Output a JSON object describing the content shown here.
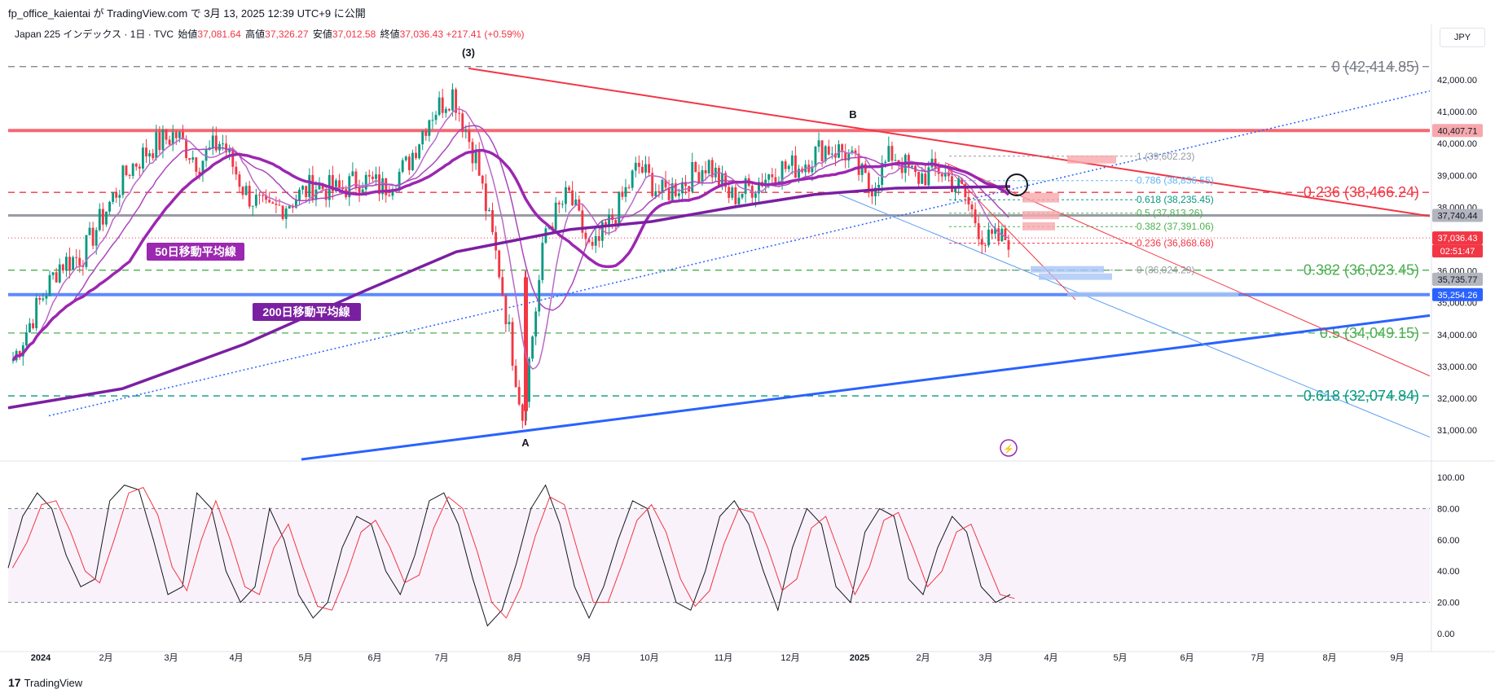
{
  "header": {
    "publisher_line": "fp_office_kaientai が TradingView.com で 3月 13, 2025 12:39 UTC+9 に公開"
  },
  "legend": {
    "symbol": "Japan 225 インデックス · 1日 · TVC",
    "open_label": "始値",
    "open": "37,081.64",
    "high_label": "高値",
    "high": "37,326.27",
    "low_label": "安値",
    "low": "37,012.58",
    "close_label": "終値",
    "close": "37,036.43",
    "change": "+217.41 (+0.59%)"
  },
  "currency": "JPY",
  "footer": {
    "brand": "TradingView",
    "logo_icon": "tradingview-logo-icon"
  },
  "colors": {
    "up": "#089981",
    "down": "#f23645",
    "ma50": "#9c27b0",
    "ma200": "#7b1fa2",
    "trend_blue": "#2962ff",
    "resistance_red": "#f23645",
    "fib_green": "#4caf50",
    "fib_teal": "#089981",
    "stoch_k": "#131722",
    "stoch_d": "#f23645",
    "stoch_band": "#9c27b0"
  },
  "chart_data": {
    "type": "candlestick",
    "x_labels": [
      "2024",
      "2月",
      "3月",
      "4月",
      "5月",
      "6月",
      "7月",
      "8月",
      "9月",
      "10月",
      "11月",
      "12月",
      "2025",
      "2月",
      "3月",
      "4月",
      "5月",
      "6月",
      "7月",
      "8月",
      "9月"
    ],
    "price_axis": [
      "42,000.00",
      "41,000.00",
      "40,000.00",
      "39,000.00",
      "38,000.00",
      "37,000.00",
      "36,000.00",
      "35,000.00",
      "34,000.00",
      "33,000.00",
      "32,000.00",
      "31,000.00"
    ],
    "ylim": [
      30100,
      42900
    ],
    "close_path": [
      {
        "m": "2024-01",
        "v": 33200
      },
      {
        "m": "2024-01b",
        "v": 34800
      },
      {
        "m": "2024-01c",
        "v": 36200
      },
      {
        "m": "2024-02",
        "v": 36500
      },
      {
        "m": "2024-02b",
        "v": 37900
      },
      {
        "m": "2024-02c",
        "v": 39200
      },
      {
        "m": "2024-03",
        "v": 39900
      },
      {
        "m": "2024-03b",
        "v": 40300
      },
      {
        "m": "2024-03c",
        "v": 39400
      },
      {
        "m": "2024-04",
        "v": 40100
      },
      {
        "m": "2024-04b",
        "v": 38500
      },
      {
        "m": "2024-04c",
        "v": 37800
      },
      {
        "m": "2024-05",
        "v": 38200
      },
      {
        "m": "2024-05b",
        "v": 38700
      },
      {
        "m": "2024-05c",
        "v": 38500
      },
      {
        "m": "2024-06",
        "v": 38900
      },
      {
        "m": "2024-06b",
        "v": 38600
      },
      {
        "m": "2024-06c",
        "v": 39300
      },
      {
        "m": "2024-07",
        "v": 40900
      },
      {
        "m": "2024-07b",
        "v": 41600
      },
      {
        "m": "2024-07c",
        "v": 39500
      },
      {
        "m": "2024-08",
        "v": 36000
      },
      {
        "m": "2024-08b",
        "v": 31450
      },
      {
        "m": "2024-08c",
        "v": 37300
      },
      {
        "m": "2024-09",
        "v": 38400
      },
      {
        "m": "2024-09b",
        "v": 36500
      },
      {
        "m": "2024-09c",
        "v": 37800
      },
      {
        "m": "2024-10",
        "v": 39300
      },
      {
        "m": "2024-10b",
        "v": 38400
      },
      {
        "m": "2024-10c",
        "v": 38800
      },
      {
        "m": "2024-11",
        "v": 39400
      },
      {
        "m": "2024-11b",
        "v": 38300
      },
      {
        "m": "2024-11c",
        "v": 38700
      },
      {
        "m": "2024-12",
        "v": 39200
      },
      {
        "m": "2024-12b",
        "v": 39300
      },
      {
        "m": "2024-12c",
        "v": 39900
      },
      {
        "m": "2025-01",
        "v": 39700
      },
      {
        "m": "2025-01b",
        "v": 38600
      },
      {
        "m": "2025-01c",
        "v": 39700
      },
      {
        "m": "2025-02",
        "v": 38900
      },
      {
        "m": "2025-02b",
        "v": 39200
      },
      {
        "m": "2025-02c",
        "v": 38500
      },
      {
        "m": "2025-03",
        "v": 36900
      },
      {
        "m": "2025-03b",
        "v": 37036
      }
    ],
    "horizontal_levels": [
      {
        "price": 42414.85,
        "label": "0 (42,414.85)",
        "style": "dashed",
        "color": "#787b86"
      },
      {
        "price": 40407.71,
        "label": "40,407.71",
        "style": "solid",
        "color": "#f23645"
      },
      {
        "price": 38466.24,
        "label": "0.236 (38,466.24)",
        "style": "dashed",
        "color": "#f23645"
      },
      {
        "price": 37740.44,
        "label": "37,740.44",
        "style": "solid",
        "color": "#787b86"
      },
      {
        "price": 36023.45,
        "label": "0.382 (36,023.45)",
        "style": "dashed",
        "color": "#4caf50"
      },
      {
        "price": 35254.26,
        "label": "35,254.26",
        "style": "solid",
        "color": "#2962ff"
      },
      {
        "price": 34049.15,
        "label": "0.5 (34,049.15)",
        "style": "dashed",
        "color": "#4caf50"
      },
      {
        "price": 32074.84,
        "label": "0.618 (32,074.84)",
        "style": "dashed",
        "color": "#089981"
      }
    ],
    "price_tags": [
      {
        "price": 40407.71,
        "text": "40,407.71",
        "bg": "#f7a8ad",
        "fg": "#131722"
      },
      {
        "price": 37740.44,
        "text": "37,740.44",
        "bg": "#b2b5be",
        "fg": "#131722"
      },
      {
        "price": 37036.43,
        "text": "37,036.43",
        "bg": "#f23645",
        "fg": "#ffffff"
      },
      {
        "price": 35735.77,
        "text": "35,735.77",
        "bg": "#b2b5be",
        "fg": "#131722"
      },
      {
        "price": 35254.26,
        "text": "35,254.26",
        "bg": "#2962ff",
        "fg": "#ffffff"
      }
    ],
    "countdown_tag": "02:51:47",
    "small_fib": [
      {
        "price": 39602.23,
        "label": "1 (39,602.23)",
        "color": "#9598a1"
      },
      {
        "price": 38836.55,
        "label": "0.786 (38,836.55)",
        "color": "#64b5f6"
      },
      {
        "price": 38235.45,
        "label": "0.618 (38,235.45)",
        "color": "#089981"
      },
      {
        "price": 37813.26,
        "label": "0.5 (37,813.26)",
        "color": "#4caf50"
      },
      {
        "price": 37391.06,
        "label": "0.382 (37,391.06)",
        "color": "#4caf50"
      },
      {
        "price": 36868.68,
        "label": "0.236 (36,868.68)",
        "color": "#f23645"
      },
      {
        "price": 36024.29,
        "label": "0 (36,024.29)",
        "color": "#9598a1"
      }
    ],
    "annotations": [
      {
        "text": "(3)",
        "kind": "wave"
      },
      {
        "text": "B",
        "kind": "wave"
      },
      {
        "text": "A",
        "kind": "wave"
      },
      {
        "text": "50日移動平均線",
        "kind": "badge"
      },
      {
        "text": "200日移動平均線",
        "kind": "badge"
      }
    ],
    "stochastic": {
      "axis": [
        "100.00",
        "80.00",
        "60.00",
        "40.00",
        "20.00",
        "0.00"
      ],
      "upper": 80,
      "lower": 20,
      "k": [
        42,
        75,
        90,
        80,
        50,
        30,
        35,
        85,
        95,
        92,
        60,
        25,
        30,
        90,
        80,
        40,
        20,
        30,
        80,
        60,
        25,
        10,
        20,
        55,
        75,
        70,
        40,
        25,
        50,
        85,
        90,
        70,
        35,
        5,
        15,
        45,
        80,
        95,
        70,
        30,
        10,
        30,
        60,
        85,
        80,
        50,
        20,
        15,
        40,
        75,
        85,
        70,
        40,
        15,
        55,
        80,
        70,
        30,
        20,
        65,
        80,
        75,
        35,
        25,
        55,
        75,
        65,
        30,
        20,
        25
      ]
    }
  }
}
